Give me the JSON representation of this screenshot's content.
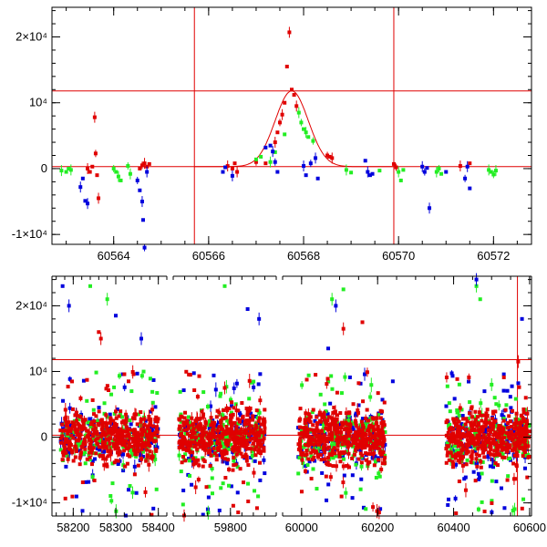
{
  "colors": {
    "red": "#e00000",
    "green": "#22ee22",
    "blue": "#0000dd",
    "axis": "#000000"
  },
  "chart_data": [
    {
      "type": "scatter",
      "title": "",
      "xlabel": "",
      "ylabel": "",
      "xlim": [
        60562.7,
        60572.8
      ],
      "ylim": [
        -11500,
        24500
      ],
      "grid": false,
      "x_ticks": [
        "60564",
        "60566",
        "60568",
        "60570",
        "60572"
      ],
      "x_tick_values": [
        60564,
        60566,
        60568,
        60570,
        60572
      ],
      "y_ticks": [
        "-1×10⁴",
        "0",
        "10⁴",
        "2×10⁴"
      ],
      "y_tick_values": [
        -10000,
        0,
        10000,
        20000
      ],
      "reference_lines": {
        "horizontal": [
          300,
          11800
        ],
        "vertical": [
          60565.7,
          60569.9
        ]
      },
      "model_curve": {
        "type": "gaussian",
        "center": 60567.75,
        "amplitude": 11500,
        "sigma": 0.35,
        "baseline": 300
      },
      "series": [
        {
          "color": "red",
          "points": [
            [
              60563.45,
              0
            ],
            [
              60563.5,
              -500
            ],
            [
              60563.55,
              300
            ],
            [
              60563.6,
              7800
            ],
            [
              60563.62,
              2300
            ],
            [
              60563.65,
              -1000
            ],
            [
              60563.68,
              -4500
            ],
            [
              60564.55,
              0
            ],
            [
              60564.6,
              500
            ],
            [
              60564.65,
              800
            ],
            [
              60564.7,
              300
            ],
            [
              60564.75,
              700
            ],
            [
              60566.4,
              400
            ],
            [
              60566.5,
              0
            ],
            [
              60566.55,
              800
            ],
            [
              60566.6,
              -500
            ],
            [
              60567.0,
              1000
            ],
            [
              60567.2,
              800
            ],
            [
              60567.4,
              4000
            ],
            [
              60567.45,
              5500
            ],
            [
              60567.5,
              7000
            ],
            [
              60567.55,
              8200
            ],
            [
              60567.6,
              10000
            ],
            [
              60567.65,
              15500
            ],
            [
              60567.7,
              20700
            ],
            [
              60567.75,
              12000
            ],
            [
              60567.8,
              11200
            ],
            [
              60567.85,
              9500
            ],
            [
              60568.5,
              2000
            ],
            [
              60568.55,
              1800
            ],
            [
              60568.6,
              1600
            ],
            [
              60569.9,
              700
            ],
            [
              60569.95,
              200
            ],
            [
              60571.3,
              400
            ],
            [
              60571.5,
              800
            ]
          ]
        },
        {
          "color": "green",
          "points": [
            [
              60562.9,
              -300
            ],
            [
              60563.0,
              -500
            ],
            [
              60563.05,
              0
            ],
            [
              60563.1,
              -200
            ],
            [
              60564.0,
              0
            ],
            [
              60564.05,
              -500
            ],
            [
              60564.1,
              -1200
            ],
            [
              60564.15,
              -1800
            ],
            [
              60564.3,
              400
            ],
            [
              60564.35,
              -800
            ],
            [
              60567.0,
              1400
            ],
            [
              60567.1,
              1800
            ],
            [
              60567.3,
              1000
            ],
            [
              60567.4,
              2500
            ],
            [
              60567.6,
              5200
            ],
            [
              60567.9,
              8500
            ],
            [
              60567.95,
              7000
            ],
            [
              60568.0,
              6000
            ],
            [
              60568.05,
              5500
            ],
            [
              60568.1,
              4800
            ],
            [
              60568.2,
              4200
            ],
            [
              60568.9,
              -200
            ],
            [
              60569.0,
              -600
            ],
            [
              60569.6,
              -300
            ],
            [
              60570.0,
              -500
            ],
            [
              60570.05,
              -1800
            ],
            [
              60570.1,
              -200
            ],
            [
              60570.8,
              -500
            ],
            [
              60570.85,
              0
            ],
            [
              60570.9,
              -800
            ],
            [
              60571.9,
              -200
            ],
            [
              60571.95,
              -500
            ],
            [
              60572.0,
              -900
            ],
            [
              60572.05,
              -300
            ]
          ]
        },
        {
          "color": "blue",
          "points": [
            [
              60563.3,
              -2800
            ],
            [
              60563.35,
              -1500
            ],
            [
              60563.4,
              -4900
            ],
            [
              60563.45,
              -5300
            ],
            [
              60564.5,
              -1800
            ],
            [
              60564.55,
              -3300
            ],
            [
              60564.6,
              -5000
            ],
            [
              60564.62,
              -7800
            ],
            [
              60564.65,
              -12000
            ],
            [
              60564.7,
              -500
            ],
            [
              60566.3,
              -500
            ],
            [
              60566.35,
              200
            ],
            [
              60566.5,
              -1100
            ],
            [
              60567.2,
              3200
            ],
            [
              60567.3,
              3500
            ],
            [
              60567.35,
              2600
            ],
            [
              60567.4,
              1000
            ],
            [
              60567.45,
              -500
            ],
            [
              60568.0,
              400
            ],
            [
              60568.05,
              -1000
            ],
            [
              60568.15,
              800
            ],
            [
              60568.25,
              1600
            ],
            [
              60568.3,
              -1500
            ],
            [
              60569.3,
              1200
            ],
            [
              60569.35,
              -500
            ],
            [
              60569.4,
              -1000
            ],
            [
              60569.45,
              -800
            ],
            [
              60570.5,
              300
            ],
            [
              60570.55,
              -500
            ],
            [
              60570.6,
              100
            ],
            [
              60570.65,
              -6000
            ],
            [
              60571.0,
              -500
            ],
            [
              60571.4,
              -1500
            ],
            [
              60571.45,
              300
            ],
            [
              60571.5,
              -3000
            ]
          ]
        }
      ]
    },
    {
      "type": "scatter",
      "title": "",
      "xlabel": "",
      "ylabel": "",
      "ylim": [
        -12000,
        24500
      ],
      "grid": false,
      "segments": [
        {
          "xlim": [
            58150,
            58420
          ],
          "x_ticks": [
            "58200",
            "58300",
            "58400"
          ],
          "x_tick_values": [
            58200,
            58300,
            58400
          ]
        },
        {
          "xlim": [
            59700,
            59880
          ],
          "x_ticks": [
            "59800"
          ],
          "x_tick_values": [
            59800
          ]
        },
        {
          "xlim": [
            59950,
            60605
          ],
          "x_ticks": [
            "60000",
            "60200",
            "60400",
            "60600"
          ],
          "x_tick_values": [
            60000,
            60200,
            60400,
            60600
          ]
        }
      ],
      "y_ticks": [
        "-1×10⁴",
        "0",
        "10⁴",
        "2×10⁴"
      ],
      "y_tick_values": [
        -10000,
        0,
        10000,
        20000
      ],
      "reference_lines": {
        "horizontal": [
          300,
          11800
        ],
        "vertical": [
          60568
        ]
      },
      "data_clusters": [
        {
          "x_range": [
            58170,
            58400
          ],
          "y_core": [
            -4000,
            4000
          ],
          "y_outliers": [
            -12000,
            23000
          ]
        },
        {
          "x_range": [
            59710,
            59860
          ],
          "y_core": [
            -4000,
            4000
          ],
          "y_outliers": [
            -12000,
            22000
          ]
        },
        {
          "x_range": [
            59990,
            60220
          ],
          "y_core": [
            -4000,
            4000
          ],
          "y_outliers": [
            -12000,
            20000
          ]
        },
        {
          "x_range": [
            60380,
            60600
          ],
          "y_core": [
            -4000,
            4000
          ],
          "y_outliers": [
            -12000,
            24000
          ]
        }
      ],
      "highlight_outliers": {
        "red": [
          [
            58260,
            16000
          ],
          [
            58265,
            15000
          ],
          [
            58330,
            8500
          ],
          [
            58345,
            3500
          ],
          [
            59730,
            9500
          ],
          [
            59790,
            7500
          ],
          [
            59830,
            4000
          ],
          [
            60110,
            16500
          ],
          [
            60160,
            17500
          ],
          [
            60570,
            11500
          ],
          [
            60590,
            6000
          ]
        ],
        "green": [
          [
            58240,
            23000
          ],
          [
            58280,
            21000
          ],
          [
            59790,
            23000
          ],
          [
            60080,
            21000
          ],
          [
            60110,
            22500
          ],
          [
            60460,
            23000
          ],
          [
            60470,
            21000
          ],
          [
            60500,
            8000
          ]
        ],
        "blue": [
          [
            58175,
            23000
          ],
          [
            58190,
            20000
          ],
          [
            58300,
            18500
          ],
          [
            58360,
            15000
          ],
          [
            59830,
            19500
          ],
          [
            59850,
            18000
          ],
          [
            60070,
            13500
          ],
          [
            60090,
            20000
          ],
          [
            60240,
            8500
          ],
          [
            60460,
            24000
          ],
          [
            60580,
            18000
          ]
        ]
      }
    }
  ]
}
